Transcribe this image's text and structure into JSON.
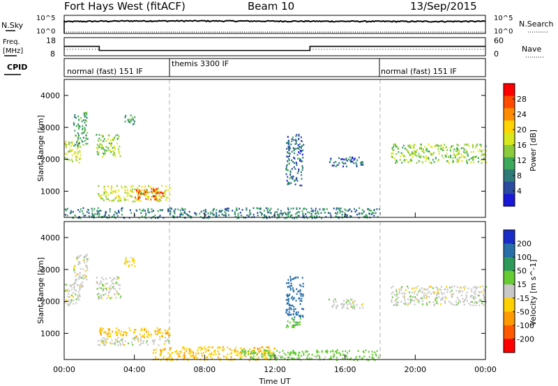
{
  "header": {
    "title": "Fort Hays West (fitACF)",
    "beam": "Beam 10",
    "date": "13/Sep/2015"
  },
  "panels": {
    "nsky": {
      "left_label": "N.Sky",
      "right_label": "N.Search",
      "left_ticks": [
        "10^5",
        "10^0"
      ],
      "right_ticks": [
        "10^5",
        "10^0"
      ]
    },
    "freq": {
      "left_label_line1": "Freq.",
      "left_label_line2": "[MHz]",
      "right_label": "Nave",
      "left_ticks": [
        "18",
        "8"
      ],
      "right_ticks": [
        "60",
        "0"
      ]
    },
    "cpid": {
      "left_label": "CPID",
      "segments": [
        "normal (fast) 151 IF",
        "themis 3300 IF",
        "normal (fast) 151 IF"
      ]
    }
  },
  "axes": {
    "ylabel": "Slant Range [km]",
    "yticks": [
      "4000",
      "3000",
      "2000",
      "1000"
    ],
    "xlabel": "Time UT",
    "xticks": [
      "00:00",
      "04:00",
      "08:00",
      "12:00",
      "16:00",
      "20:00",
      "00:00"
    ]
  },
  "colorbars": {
    "power": {
      "label": "Power [dB]",
      "ticks": [
        "28",
        "24",
        "20",
        "16",
        "12",
        "8",
        "4"
      ],
      "colors": [
        "#ff0000",
        "#ff4a00",
        "#ff8c00",
        "#ffd400",
        "#d8e81c",
        "#8ccc3c",
        "#3ca85c",
        "#2e7a78",
        "#2a4aa0",
        "#1a18d8"
      ]
    },
    "velocity": {
      "label": "Velocity [m s^-1]",
      "ticks": [
        "200",
        "100",
        "50",
        "15",
        "-15",
        "-50",
        "-100",
        "-200"
      ],
      "colors": [
        "#1a2cc8",
        "#286ea8",
        "#2e9a5a",
        "#66cc33",
        "#c8c8c8",
        "#ffd000",
        "#ff9a00",
        "#ff5a00",
        "#ff0000"
      ]
    }
  },
  "chart_data": [
    {
      "type": "line",
      "panel": "N.Sky / N.Search",
      "x": [
        "00:00",
        "04:00",
        "08:00",
        "12:00",
        "16:00",
        "20:00",
        "24:00"
      ],
      "series": [
        {
          "name": "N.Sky",
          "values": [
            3500,
            6000,
            6000,
            5000,
            4500,
            4000,
            4500
          ]
        },
        {
          "name": "N.Search",
          "values": [
            1,
            1,
            1,
            1,
            1,
            1,
            1
          ]
        }
      ],
      "ylim": [
        1,
        100000
      ],
      "yscale": "log"
    },
    {
      "type": "line",
      "panel": "Freq / Nave",
      "series": [
        {
          "name": "Freq.",
          "segments": [
            {
              "x_start": 0.0,
              "x_end": 2.0,
              "value": 13.2
            },
            {
              "x_start": 2.0,
              "x_end": 14.0,
              "value": 10.5
            },
            {
              "x_start": 14.0,
              "x_end": 24.0,
              "value": 13.2
            }
          ]
        },
        {
          "name": "Nave",
          "segments": [
            {
              "x_start": 0.0,
              "x_end": 2.0,
              "value": 20
            },
            {
              "x_start": 2.0,
              "x_end": 14.0,
              "value": 15
            },
            {
              "x_start": 14.0,
              "x_end": 24.0,
              "value": 20
            }
          ]
        }
      ],
      "ylim_freq": [
        8,
        18
      ],
      "ylim_nave": [
        0,
        60
      ]
    },
    {
      "type": "table",
      "panel": "CPID",
      "rows": [
        {
          "name": "normal (fast) 151 IF",
          "start_hour": 0,
          "end_hour": 6
        },
        {
          "name": "themis 3300 IF",
          "start_hour": 6,
          "end_hour": 18
        },
        {
          "name": "normal (fast) 151 IF",
          "start_hour": 18,
          "end_hour": 24
        }
      ]
    },
    {
      "type": "heatmap",
      "panel": "Power",
      "xlim": [
        0,
        24
      ],
      "ylim": [
        180,
        4500
      ],
      "ylabel": "Slant Range [km]",
      "zlabel": "Power [dB]",
      "zlim": [
        0,
        30
      ],
      "blobs": [
        {
          "x0": 0.0,
          "x1": 0.9,
          "r0": 1900,
          "r1": 2600,
          "value": 16
        },
        {
          "x0": 0.5,
          "x1": 1.3,
          "r0": 2400,
          "r1": 3500,
          "value": 10
        },
        {
          "x0": 1.8,
          "x1": 3.2,
          "r0": 2100,
          "r1": 2800,
          "value": 14
        },
        {
          "x0": 3.4,
          "x1": 4.0,
          "r0": 3100,
          "r1": 3400,
          "value": 10
        },
        {
          "x0": 1.9,
          "x1": 6.0,
          "r0": 700,
          "r1": 1200,
          "value": 16
        },
        {
          "x0": 4.0,
          "x1": 5.6,
          "r0": 750,
          "r1": 1100,
          "value": 26
        },
        {
          "x0": 0.0,
          "x1": 18.0,
          "r0": 180,
          "r1": 500,
          "value": 8
        },
        {
          "x0": 12.6,
          "x1": 13.6,
          "r0": 1200,
          "r1": 2800,
          "value": 6
        },
        {
          "x0": 15.0,
          "x1": 17.0,
          "r0": 1800,
          "r1": 2100,
          "value": 6
        },
        {
          "x0": 18.6,
          "x1": 24.0,
          "r0": 1900,
          "r1": 2500,
          "value": 14
        }
      ]
    },
    {
      "type": "heatmap",
      "panel": "Velocity",
      "xlim": [
        0,
        24
      ],
      "ylim": [
        180,
        4500
      ],
      "ylabel": "Slant Range [km]",
      "zlabel": "Velocity [m s^-1]",
      "zlim": [
        -200,
        200
      ],
      "blobs": [
        {
          "x0": 0.0,
          "x1": 0.9,
          "r0": 1900,
          "r1": 2600,
          "value": 0
        },
        {
          "x0": 0.5,
          "x1": 1.3,
          "r0": 2400,
          "r1": 3500,
          "value": 0
        },
        {
          "x0": 1.8,
          "x1": 3.2,
          "r0": 2100,
          "r1": 2800,
          "value": 0
        },
        {
          "x0": 3.4,
          "x1": 4.0,
          "r0": 3100,
          "r1": 3400,
          "value": -30
        },
        {
          "x0": 1.9,
          "x1": 6.0,
          "r0": 900,
          "r1": 1200,
          "value": -40
        },
        {
          "x0": 1.9,
          "x1": 6.0,
          "r0": 650,
          "r1": 900,
          "value": 0
        },
        {
          "x0": 5.0,
          "x1": 12.0,
          "r0": 180,
          "r1": 600,
          "value": -40
        },
        {
          "x0": 10.0,
          "x1": 18.0,
          "r0": 180,
          "r1": 500,
          "value": 30
        },
        {
          "x0": 12.6,
          "x1": 13.6,
          "r0": 1500,
          "r1": 2800,
          "value": 150
        },
        {
          "x0": 12.6,
          "x1": 13.6,
          "r0": 1200,
          "r1": 1500,
          "value": 40
        },
        {
          "x0": 15.0,
          "x1": 17.0,
          "r0": 1800,
          "r1": 2100,
          "value": 0
        },
        {
          "x0": 18.6,
          "x1": 24.0,
          "r0": 1900,
          "r1": 2500,
          "value": 0
        }
      ]
    }
  ]
}
